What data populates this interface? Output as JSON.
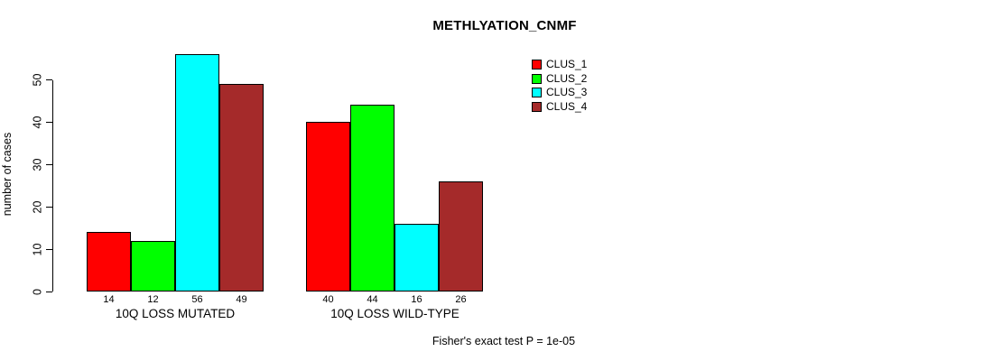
{
  "chart_data": {
    "type": "bar",
    "title": "METHLYATION_CNMF",
    "ylabel": "number of cases",
    "xlabel": "",
    "footnote": "Fisher's exact test P = 1e-05",
    "grid": false,
    "legend_position": "top-right",
    "yticks": [
      0,
      10,
      20,
      30,
      40,
      50
    ],
    "ylim": [
      0,
      56
    ],
    "categories": [
      "10Q LOSS MUTATED",
      "10Q LOSS WILD-TYPE"
    ],
    "series": [
      {
        "name": "CLUS_1",
        "color": "#FF0000",
        "values": [
          14,
          40
        ]
      },
      {
        "name": "CLUS_2",
        "color": "#00FF00",
        "values": [
          12,
          44
        ]
      },
      {
        "name": "CLUS_3",
        "color": "#00FFFF",
        "values": [
          56,
          16
        ]
      },
      {
        "name": "CLUS_4",
        "color": "#A52A2A",
        "values": [
          49,
          26
        ]
      }
    ]
  },
  "colors": {
    "background": "#FFFFFF",
    "axis": "#000000",
    "text": "#000000"
  }
}
